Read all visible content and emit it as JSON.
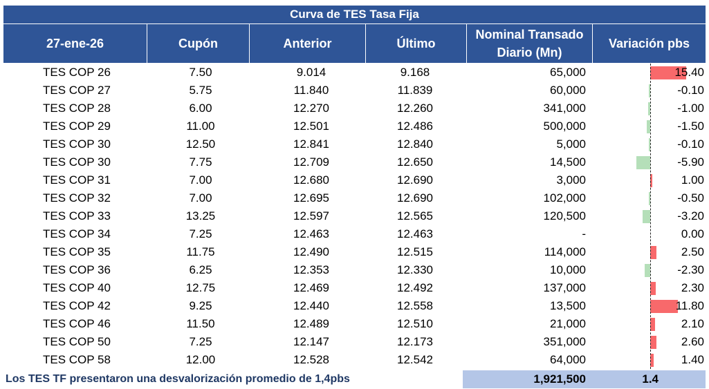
{
  "title": "Curva de TES Tasa Fija",
  "headers": {
    "date": "27-ene-26",
    "cupon": "Cupón",
    "anterior": "Anterior",
    "ultimo": "Último",
    "nominal_line1": "Nominal Transado",
    "nominal_line2": "Diario (Mn)",
    "variacion": "Variación pbs"
  },
  "rows": [
    {
      "name": "TES COP 26",
      "cupon": "7.50",
      "anterior": "9.014",
      "ultimo": "9.168",
      "nominal": "65,000",
      "variacion": "15.40",
      "var_value": 15.4
    },
    {
      "name": "TES COP 27",
      "cupon": "5.75",
      "anterior": "11.840",
      "ultimo": "11.839",
      "nominal": "60,000",
      "variacion": "-0.10",
      "var_value": -0.1
    },
    {
      "name": "TES COP 28",
      "cupon": "6.00",
      "anterior": "12.270",
      "ultimo": "12.260",
      "nominal": "341,000",
      "variacion": "-1.00",
      "var_value": -1.0
    },
    {
      "name": "TES COP 29",
      "cupon": "11.00",
      "anterior": "12.501",
      "ultimo": "12.486",
      "nominal": "500,000",
      "variacion": "-1.50",
      "var_value": -1.5
    },
    {
      "name": "TES COP 30",
      "cupon": "12.50",
      "anterior": "12.841",
      "ultimo": "12.840",
      "nominal": "5,000",
      "variacion": "-0.10",
      "var_value": -0.1
    },
    {
      "name": "TES COP 30",
      "cupon": "7.75",
      "anterior": "12.709",
      "ultimo": "12.650",
      "nominal": "14,500",
      "variacion": "-5.90",
      "var_value": -5.9
    },
    {
      "name": "TES COP 31",
      "cupon": "7.00",
      "anterior": "12.680",
      "ultimo": "12.690",
      "nominal": "3,000",
      "variacion": "1.00",
      "var_value": 1.0
    },
    {
      "name": "TES COP 32",
      "cupon": "7.00",
      "anterior": "12.695",
      "ultimo": "12.690",
      "nominal": "102,000",
      "variacion": "-0.50",
      "var_value": -0.5
    },
    {
      "name": "TES COP 33",
      "cupon": "13.25",
      "anterior": "12.597",
      "ultimo": "12.565",
      "nominal": "120,500",
      "variacion": "-3.20",
      "var_value": -3.2
    },
    {
      "name": "TES COP 34",
      "cupon": "7.25",
      "anterior": "12.463",
      "ultimo": "12.463",
      "nominal": "-",
      "variacion": "0.00",
      "var_value": 0.0
    },
    {
      "name": "TES COP 35",
      "cupon": "11.75",
      "anterior": "12.490",
      "ultimo": "12.515",
      "nominal": "114,000",
      "variacion": "2.50",
      "var_value": 2.5
    },
    {
      "name": "TES COP 36",
      "cupon": "6.25",
      "anterior": "12.353",
      "ultimo": "12.330",
      "nominal": "10,000",
      "variacion": "-2.30",
      "var_value": -2.3
    },
    {
      "name": "TES COP 40",
      "cupon": "12.75",
      "anterior": "12.469",
      "ultimo": "12.492",
      "nominal": "137,000",
      "variacion": "2.30",
      "var_value": 2.3
    },
    {
      "name": "TES COP 42",
      "cupon": "9.25",
      "anterior": "12.440",
      "ultimo": "12.558",
      "nominal": "13,500",
      "variacion": "11.80",
      "var_value": 11.8
    },
    {
      "name": "TES COP 46",
      "cupon": "11.50",
      "anterior": "12.489",
      "ultimo": "12.510",
      "nominal": "21,000",
      "variacion": "2.10",
      "var_value": 2.1
    },
    {
      "name": "TES COP 50",
      "cupon": "7.25",
      "anterior": "12.147",
      "ultimo": "12.173",
      "nominal": "351,000",
      "variacion": "2.60",
      "var_value": 2.6
    },
    {
      "name": "TES COP 58",
      "cupon": "12.00",
      "anterior": "12.528",
      "ultimo": "12.542",
      "nominal": "64,000",
      "variacion": "1.40",
      "var_value": 1.4
    }
  ],
  "footer": {
    "text": "Los TES TF presentaron una desvalorización promedio de 1,4pbs",
    "total_nominal": "1,921,500",
    "avg_variacion": "1.4"
  },
  "colors": {
    "header_bg": "#2f5597",
    "positive_bar": "#f8696b",
    "negative_bar": "#b5dfb9",
    "footer_total_bg": "#b4c6e7",
    "footer_text": "#1f3864"
  }
}
